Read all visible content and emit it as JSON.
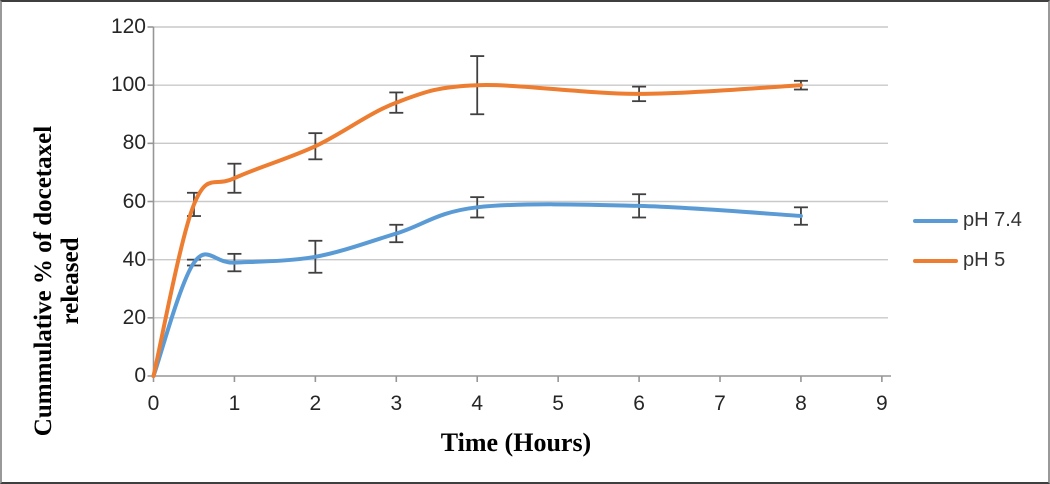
{
  "chart_data": {
    "type": "line",
    "title": "",
    "xlabel": "Time (Hours)",
    "ylabel": "Cummulative % of docetaxel released",
    "x": [
      0,
      0.5,
      1,
      2,
      3,
      4,
      6,
      8
    ],
    "series": [
      {
        "name": "pH 7.4",
        "color": "#5B9BD5",
        "values": [
          0,
          39,
          39,
          41,
          49,
          58,
          58.5,
          55
        ],
        "errors": [
          0,
          1,
          3,
          5.5,
          3,
          3.5,
          4,
          3
        ]
      },
      {
        "name": "pH 5",
        "color": "#ED7D31",
        "values": [
          0,
          59,
          68,
          79,
          94,
          100,
          97,
          100
        ],
        "errors": [
          0,
          4,
          5,
          4.5,
          3.5,
          10,
          2.5,
          1.5
        ]
      }
    ],
    "x_ticks": [
      0,
      1,
      2,
      3,
      4,
      5,
      6,
      7,
      8,
      9
    ],
    "y_ticks": [
      0,
      20,
      40,
      60,
      80,
      100,
      120
    ],
    "xlim": [
      0,
      9
    ],
    "ylim": [
      0,
      120
    ],
    "grid": "horizontal",
    "smooth_lines": true,
    "error_bars": true,
    "legend_position": "right-middle"
  },
  "colors": {
    "background": "#FFFFFF",
    "gridline": "#C9C9C9",
    "axis": "#969696",
    "error_bar": "#404040",
    "tick_text": "#262626",
    "axis_title_text": "#000000"
  }
}
